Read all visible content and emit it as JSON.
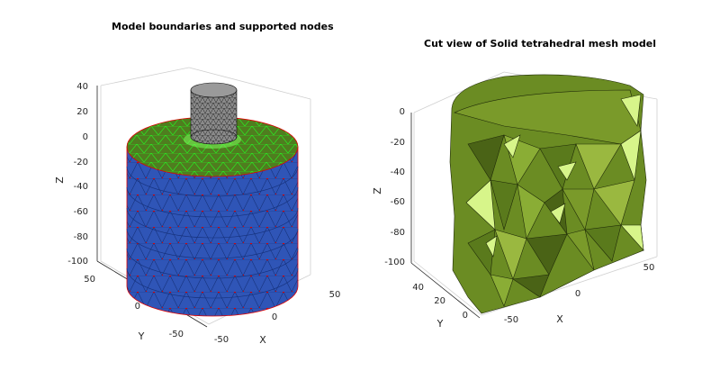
{
  "left_panel": {
    "title": "Model boundaries and supported nodes",
    "z_axis_label": "Z",
    "y_axis_label": "Y",
    "x_axis_label": "X",
    "z_ticks": [
      "40",
      "20",
      "0",
      "-20",
      "-40",
      "-60",
      "-80",
      "-100"
    ],
    "y_ticks": [
      "50",
      "0",
      "-50"
    ],
    "x_ticks": [
      "-50",
      "0",
      "50"
    ],
    "colors": {
      "side": "#2f55b7",
      "top": "#4f7d1f",
      "top_mesh": "#22ff22",
      "support_nodes": "#e00000",
      "indenter": "#808080"
    }
  },
  "right_panel": {
    "title": "Cut view of Solid tetrahedral mesh model",
    "z_axis_label": "Z",
    "y_axis_label": "Y",
    "x_axis_label": "X",
    "z_ticks": [
      "0",
      "-20",
      "-40",
      "-60",
      "-80",
      "-100"
    ],
    "y_ticks": [
      "40",
      "20",
      "0"
    ],
    "x_ticks": [
      "-50",
      "0",
      "50"
    ],
    "colors": {
      "solid": "#6b8c23",
      "dark": "#4a6316",
      "light": "#d7f58a"
    }
  }
}
